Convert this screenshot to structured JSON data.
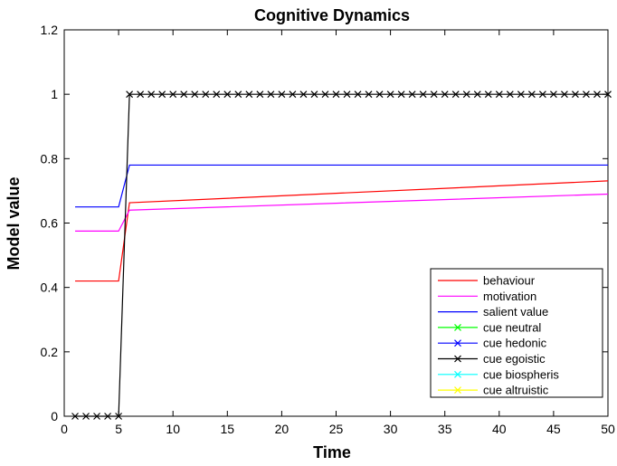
{
  "chart_data": {
    "type": "line",
    "title": "Cognitive Dynamics",
    "xlabel": "Time",
    "ylabel": "Model value",
    "xlim": [
      0,
      50
    ],
    "ylim": [
      0,
      1.2
    ],
    "xticks": [
      0,
      5,
      10,
      15,
      20,
      25,
      30,
      35,
      40,
      45,
      50
    ],
    "yticks": [
      0,
      0.2,
      0.4,
      0.6,
      0.8,
      1,
      1.2
    ],
    "xtick_labels": [
      "0",
      "5",
      "10",
      "15",
      "20",
      "25",
      "30",
      "35",
      "40",
      "45",
      "50"
    ],
    "ytick_labels": [
      "0",
      "0.2",
      "0.4",
      "0.6",
      "0.8",
      "1",
      "1.2"
    ],
    "grid": false,
    "legend_position": "bottom-right",
    "series": [
      {
        "name": "behaviour",
        "color": "#ff0000",
        "marker": "none",
        "x": [
          1,
          5,
          6,
          50
        ],
        "y": [
          0.42,
          0.42,
          0.663,
          0.731
        ]
      },
      {
        "name": "motivation",
        "color": "#ff00ff",
        "marker": "none",
        "x": [
          1,
          5,
          6,
          50
        ],
        "y": [
          0.575,
          0.575,
          0.64,
          0.69
        ]
      },
      {
        "name": "salient value",
        "color": "#0000ff",
        "marker": "none",
        "x": [
          1,
          5,
          6,
          50
        ],
        "y": [
          0.65,
          0.65,
          0.78,
          0.78
        ]
      },
      {
        "name": "cue neutral",
        "color": "#00ff00",
        "marker": "x",
        "x": [],
        "y": []
      },
      {
        "name": "cue hedonic",
        "color": "#0000ff",
        "marker": "x",
        "x": [],
        "y": []
      },
      {
        "name": "cue egoistic",
        "color": "#000000",
        "marker": "x",
        "x": [
          1,
          2,
          3,
          4,
          5,
          6,
          7,
          8,
          9,
          10,
          11,
          12,
          13,
          14,
          15,
          16,
          17,
          18,
          19,
          20,
          21,
          22,
          23,
          24,
          25,
          26,
          27,
          28,
          29,
          30,
          31,
          32,
          33,
          34,
          35,
          36,
          37,
          38,
          39,
          40,
          41,
          42,
          43,
          44,
          45,
          46,
          47,
          48,
          49,
          50
        ],
        "y": [
          0,
          0,
          0,
          0,
          0,
          1,
          1,
          1,
          1,
          1,
          1,
          1,
          1,
          1,
          1,
          1,
          1,
          1,
          1,
          1,
          1,
          1,
          1,
          1,
          1,
          1,
          1,
          1,
          1,
          1,
          1,
          1,
          1,
          1,
          1,
          1,
          1,
          1,
          1,
          1,
          1,
          1,
          1,
          1,
          1,
          1,
          1,
          1,
          1,
          1
        ]
      },
      {
        "name": "cue biospheris",
        "color": "#00ffff",
        "marker": "x",
        "x": [],
        "y": []
      },
      {
        "name": "cue altruistic",
        "color": "#ffff00",
        "marker": "x",
        "x": [],
        "y": []
      }
    ]
  }
}
